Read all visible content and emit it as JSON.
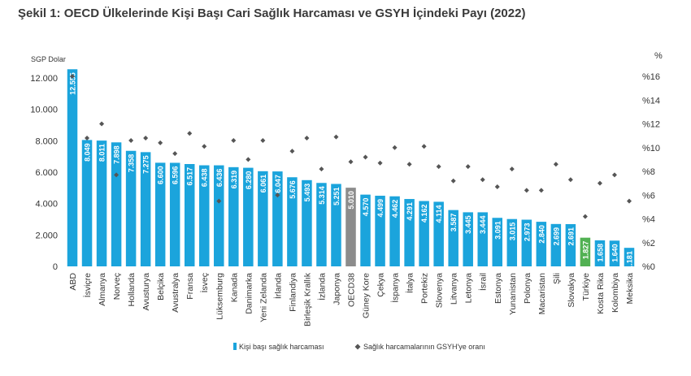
{
  "title": "Şekil 1: OECD Ülkelerinde Kişi Başı Cari Sağlık Harcaması ve GSYH İçindeki Payı (2022)",
  "colors": {
    "bar": "#1ba4dc",
    "oecd": "#8c8c8c",
    "turkiye": "#52b153",
    "marker": "#555555"
  },
  "chart_data": {
    "type": "bar",
    "title": "Şekil 1: OECD Ülkelerinde Kişi Başı Cari Sağlık Harcaması ve GSYH İçindeki Payı (2022)",
    "left_axis_label": "SGP Dolar",
    "right_axis_label": "%",
    "left_ylim": [
      0,
      12000
    ],
    "left_ticks": [
      "0",
      "2.000",
      "4.000",
      "6.000",
      "8.000",
      "10.000",
      "12.000"
    ],
    "right_ylim": [
      0,
      16
    ],
    "right_ticks": [
      "%0",
      "%2",
      "%4",
      "%6",
      "%8",
      "%10",
      "%12",
      "%14",
      "%16"
    ],
    "grid": false,
    "legend_position": "bottom",
    "categories": [
      "ABD",
      "İsviçre",
      "Almanya",
      "Norveç",
      "Hollanda",
      "Avusturya",
      "Belçika",
      "Avustralya",
      "Fransa",
      "İsveç",
      "Lüksemburg",
      "Kanada",
      "Danimarka",
      "Yeni Zelanda",
      "İrlanda",
      "Finlandiya",
      "Birleşik Krallık",
      "İzlanda",
      "Japonya",
      "OECD38",
      "Güney Kore",
      "Çekya",
      "İspanya",
      "İtalya",
      "Portekiz",
      "Slovenya",
      "Litvanya",
      "Letonya",
      "İsrail",
      "Estonya",
      "Yunanistan",
      "Polonya",
      "Macaristan",
      "Şili",
      "Slovakya",
      "Türkiye",
      "Kosta Rika",
      "Kolombiya",
      "Meksika"
    ],
    "series": [
      {
        "name": "Kişi başı sağlık harcaması",
        "axis": "left",
        "values": [
          12555,
          8049,
          8011,
          7898,
          7358,
          7275,
          6600,
          6596,
          6517,
          6438,
          6436,
          6319,
          6280,
          6061,
          6047,
          5676,
          5493,
          5314,
          5251,
          5010,
          4570,
          4499,
          4462,
          4291,
          4162,
          4114,
          3587,
          3445,
          3444,
          3091,
          3015,
          2973,
          2840,
          2699,
          2691,
          1827,
          1658,
          1640,
          1181
        ],
        "labels": [
          "12.555",
          "8.049",
          "8.011",
          "7.898",
          "7.358",
          "7.275",
          "6.600",
          "6.596",
          "6.517",
          "6.438",
          "6.436",
          "6.319",
          "6.280",
          "6.061",
          "6.047",
          "5.676",
          "5.493",
          "5.314",
          "5.251",
          "5.010",
          "4.570",
          "4.499",
          "4.462",
          "4.291",
          "4.162",
          "4.114",
          "3.587",
          "3.445",
          "3.444",
          "3.091",
          "3.015",
          "2.973",
          "2.840",
          "2.699",
          "2.691",
          "1.827",
          "1.658",
          "1.640",
          "1.181"
        ]
      },
      {
        "name": "Sağlık harcamalarının GSYH'ye oranı",
        "axis": "right",
        "values": [
          16.0,
          10.8,
          12.0,
          7.7,
          10.6,
          10.8,
          10.4,
          9.5,
          11.2,
          10.1,
          5.5,
          10.6,
          9.0,
          10.6,
          6.0,
          9.7,
          10.8,
          8.2,
          10.9,
          8.8,
          9.2,
          8.7,
          10.0,
          8.6,
          10.1,
          8.4,
          7.2,
          8.4,
          7.3,
          6.7,
          8.2,
          6.4,
          6.4,
          8.6,
          7.3,
          4.2,
          7.0,
          7.7,
          5.5
        ]
      }
    ]
  },
  "legend": {
    "bar_label": "Kişi başı sağlık harcaması",
    "marker_label": "Sağlık harcamalarının GSYH'ye oranı"
  }
}
